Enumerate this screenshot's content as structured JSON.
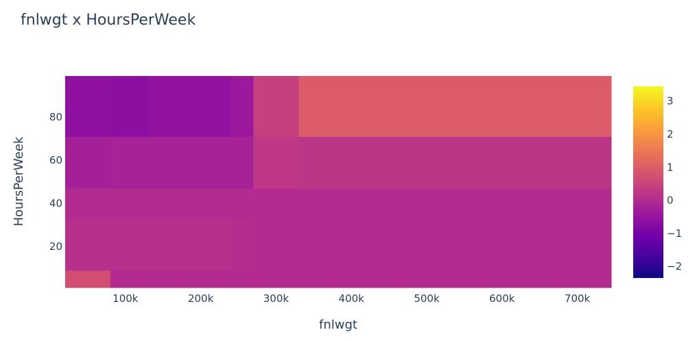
{
  "chart_data": {
    "type": "heatmap",
    "title": "fnlwgt x HoursPerWeek",
    "xlabel": "fnlwgt",
    "ylabel": "HoursPerWeek",
    "x_ticks": [
      {
        "value": 100000,
        "label": "100k"
      },
      {
        "value": 200000,
        "label": "200k"
      },
      {
        "value": 300000,
        "label": "300k"
      },
      {
        "value": 400000,
        "label": "400k"
      },
      {
        "value": 500000,
        "label": "500k"
      },
      {
        "value": 600000,
        "label": "600k"
      },
      {
        "value": 700000,
        "label": "700k"
      }
    ],
    "y_ticks": [
      {
        "value": 20,
        "label": "20"
      },
      {
        "value": 40,
        "label": "40"
      },
      {
        "value": 60,
        "label": "60"
      },
      {
        "value": 80,
        "label": "80"
      }
    ],
    "xlim": [
      20000,
      745000
    ],
    "ylim": [
      1,
      99
    ],
    "x_edges": [
      20000,
      80000,
      130000,
      240000,
      270000,
      330000,
      745000
    ],
    "y_edges": [
      1,
      9,
      33,
      47,
      71,
      99
    ],
    "z": [
      [
        0.7,
        0.0,
        0.0,
        0.0,
        0.0,
        0.0
      ],
      [
        0.1,
        0.1,
        0.1,
        0.05,
        0.0,
        0.0
      ],
      [
        0.0,
        0.0,
        0.0,
        0.0,
        0.0,
        0.0
      ],
      [
        -0.25,
        -0.2,
        -0.2,
        -0.2,
        0.25,
        0.2
      ],
      [
        -0.6,
        -0.65,
        -0.55,
        -0.4,
        0.4,
        0.95
      ]
    ],
    "colorbar": {
      "zmin": -2.35,
      "zmax": 3.45,
      "ticks": [
        {
          "value": -2,
          "label": "−2"
        },
        {
          "value": -1,
          "label": "−1"
        },
        {
          "value": 0,
          "label": "0"
        },
        {
          "value": 1,
          "label": "1"
        },
        {
          "value": 2,
          "label": "2"
        },
        {
          "value": 3,
          "label": "3"
        }
      ]
    },
    "colorscale": [
      "#0d0887",
      "#46039f",
      "#7201a8",
      "#9c179e",
      "#bd3786",
      "#d8576b",
      "#ed7953",
      "#fb9f3a",
      "#fdca26",
      "#f0f921"
    ]
  }
}
